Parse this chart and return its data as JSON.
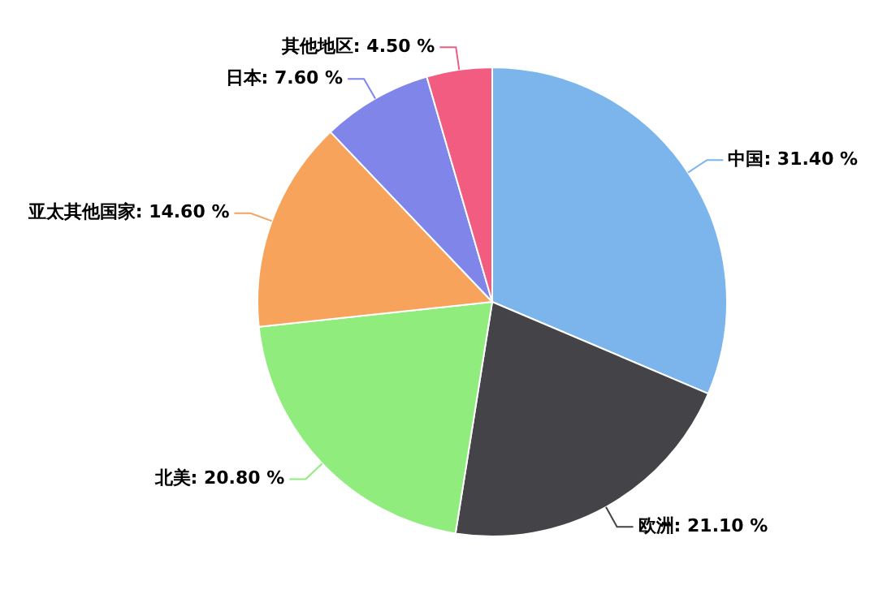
{
  "chart_data": {
    "type": "pie",
    "categories": [
      "中国",
      "欧洲",
      "北美",
      "亚太其他国家",
      "日本",
      "其他地区"
    ],
    "values": [
      31.4,
      21.1,
      20.8,
      14.6,
      7.6,
      4.5
    ],
    "value_labels": [
      "31.40 %",
      "21.10 %",
      "20.80 %",
      "14.60 %",
      "7.60 %",
      "4.50 %"
    ],
    "colors": [
      "#7cb5ec",
      "#434348",
      "#90ed7d",
      "#f7a35c",
      "#8085e9",
      "#f15c80"
    ],
    "legend": false
  }
}
